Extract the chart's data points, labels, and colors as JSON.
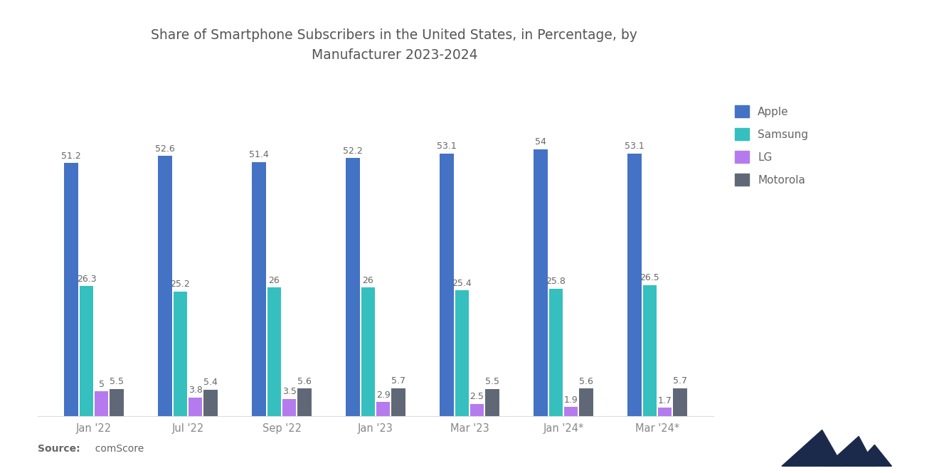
{
  "title": "Share of Smartphone Subscribers in the United States, in Percentage, by\nManufacturer 2023-2024",
  "categories": [
    "Jan '22",
    "Jul '22",
    "Sep '22",
    "Jan '23",
    "Mar '23",
    "Jan '24*",
    "Mar '24*"
  ],
  "apple": [
    51.2,
    52.6,
    51.4,
    52.2,
    53.1,
    54.0,
    53.1
  ],
  "samsung": [
    26.3,
    25.2,
    26.0,
    26.0,
    25.4,
    25.8,
    26.5
  ],
  "lg": [
    5.0,
    3.8,
    3.5,
    2.9,
    2.5,
    1.9,
    1.7
  ],
  "motorola": [
    5.5,
    5.4,
    5.6,
    5.7,
    5.5,
    5.6,
    5.7
  ],
  "apple_color": "#4472C4",
  "samsung_color": "#36BFBF",
  "lg_color": "#B57BEE",
  "motorola_color": "#606878",
  "bg_color": "#FFFFFF",
  "title_color": "#555555",
  "label_color": "#666666",
  "tick_color": "#888888",
  "source_bold": "Source:",
  "source_rest": "  comScore",
  "logo_color": "#1B2A4A"
}
